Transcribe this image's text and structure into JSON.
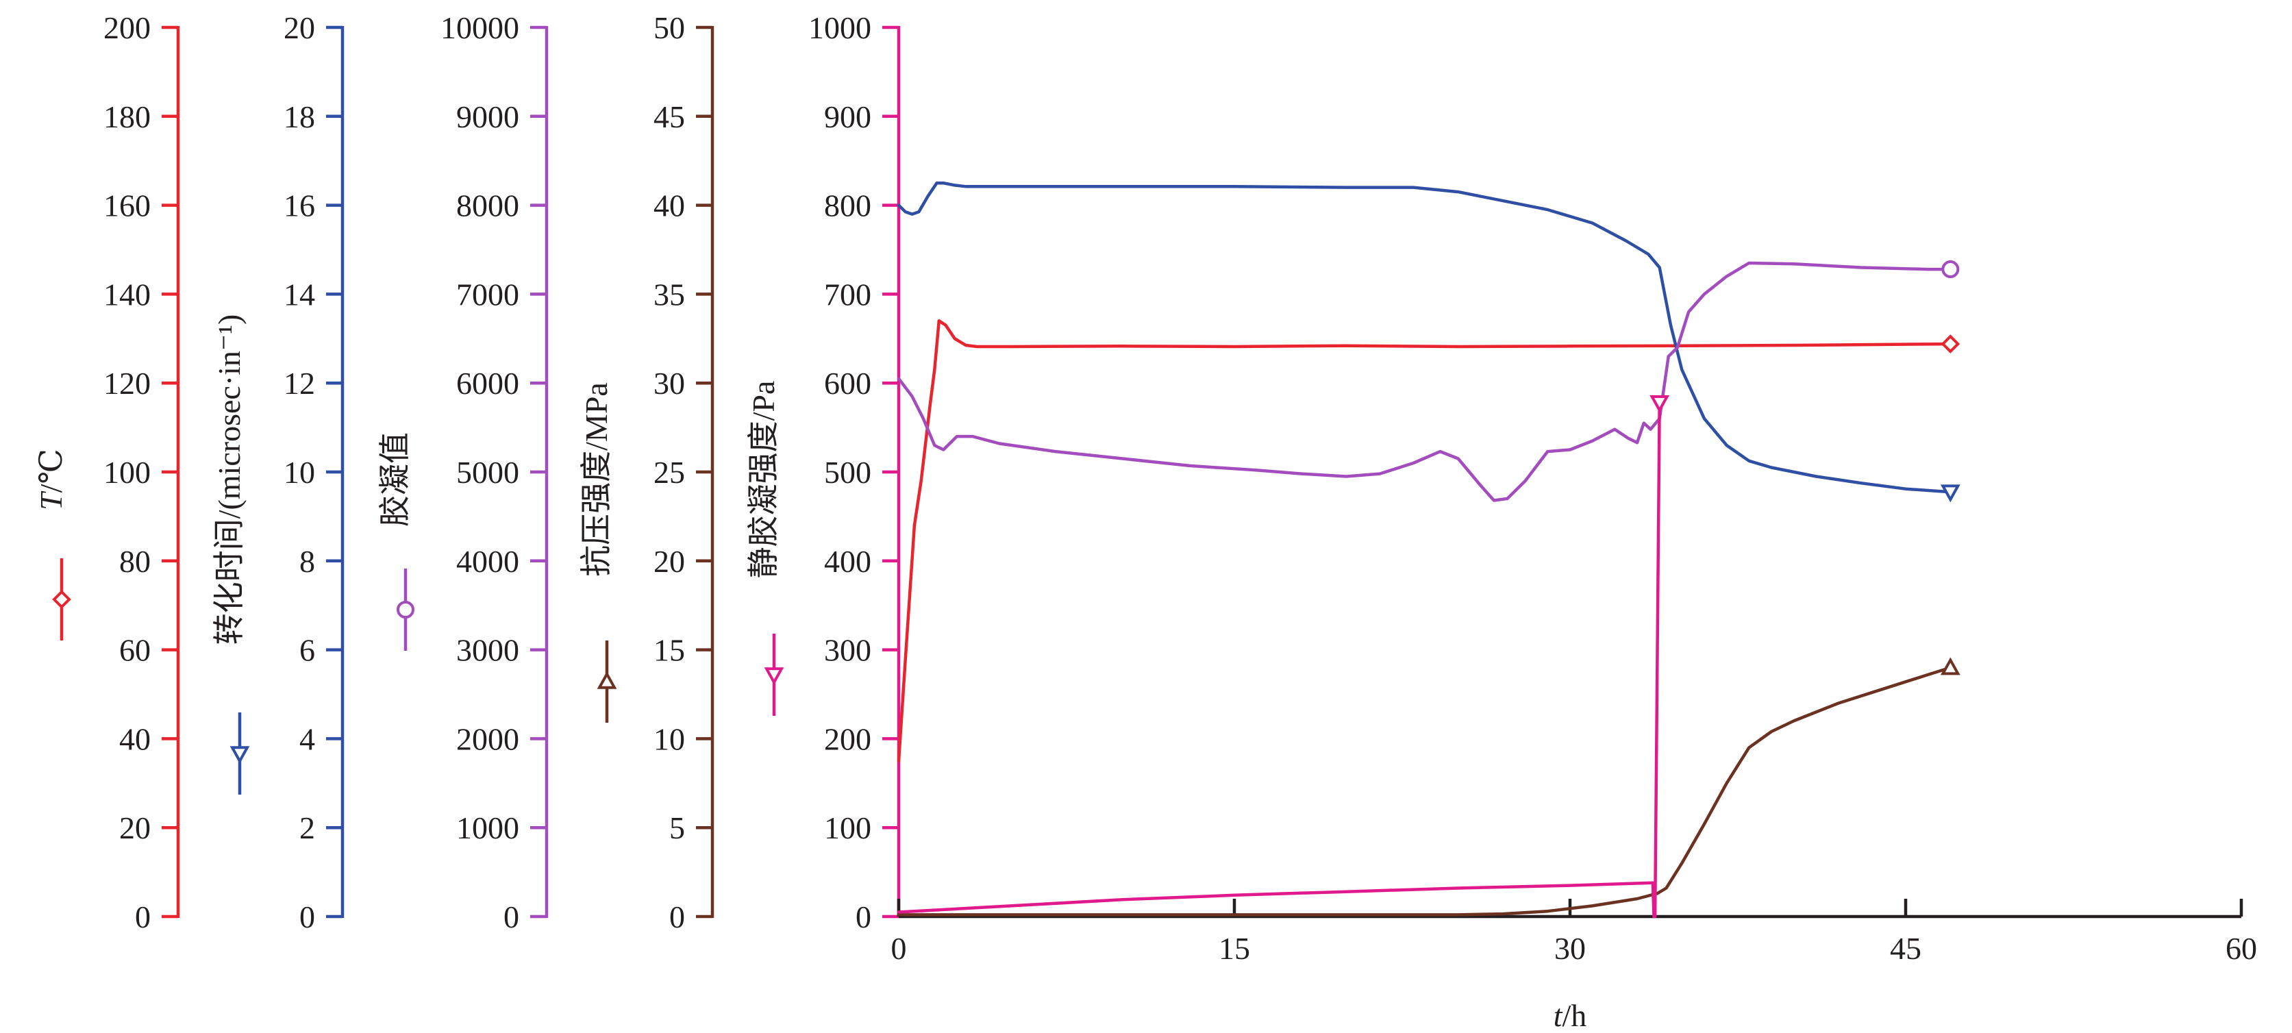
{
  "chart_data": {
    "type": "line",
    "x_axis": {
      "label": "t/h",
      "label_italic_part": "t",
      "label_rest": "/h",
      "range": [
        0,
        60
      ],
      "ticks": [
        0,
        15,
        30,
        45,
        60
      ],
      "tick_labels": [
        "0",
        "15",
        "30",
        "45",
        "60"
      ]
    },
    "y_axes": [
      {
        "id": "temperature",
        "title_italic": "T",
        "title_rest": "/℃",
        "color": "#e8242f",
        "range": [
          0,
          200
        ],
        "tick_labels": [
          "0",
          "20",
          "40",
          "60",
          "80",
          "100",
          "120",
          "140",
          "160",
          "180",
          "200"
        ],
        "marker": "diamond"
      },
      {
        "id": "transit_time",
        "title_italic": "",
        "title_rest": "转化时间/(microsec·in⁻¹)",
        "color": "#2e4fa3",
        "range": [
          0,
          20
        ],
        "tick_labels": [
          "0",
          "2",
          "4",
          "6",
          "8",
          "10",
          "12",
          "14",
          "16",
          "18",
          "20"
        ],
        "marker": "triangle-down"
      },
      {
        "id": "consistency",
        "title_italic": "",
        "title_rest": "胶凝值",
        "color": "#a34cbd",
        "range": [
          0,
          10000
        ],
        "tick_labels": [
          "0",
          "1000",
          "2000",
          "3000",
          "4000",
          "5000",
          "6000",
          "7000",
          "8000",
          "9000",
          "10000"
        ],
        "marker": "circle"
      },
      {
        "id": "compressive_strength",
        "title_italic": "",
        "title_rest": "抗压强度/MPa",
        "color": "#6b3222",
        "range": [
          0,
          50
        ],
        "tick_labels": [
          "0",
          "5",
          "10",
          "15",
          "20",
          "25",
          "30",
          "35",
          "40",
          "45",
          "50"
        ],
        "marker": "triangle-up"
      },
      {
        "id": "sgs",
        "title_italic": "",
        "title_rest": "静胶凝强度/Pa",
        "color": "#e0198c",
        "range": [
          0,
          1000
        ],
        "tick_labels": [
          "0",
          "100",
          "200",
          "300",
          "400",
          "500",
          "600",
          "700",
          "800",
          "900",
          "1000"
        ],
        "marker": "triangle-down"
      }
    ],
    "series": [
      {
        "axis": "temperature",
        "color": "#e8242f",
        "marker": "diamond",
        "x": [
          0,
          0.3,
          0.7,
          1.0,
          1.4,
          1.6,
          1.8,
          2.1,
          2.5,
          3.0,
          3.5,
          5,
          10,
          15,
          20,
          25,
          30,
          35,
          40,
          47
        ],
        "y": [
          35,
          58,
          88,
          98,
          115,
          123,
          134,
          133,
          130,
          128.5,
          128.2,
          128.2,
          128.3,
          128.2,
          128.4,
          128.2,
          128.3,
          128.4,
          128.5,
          128.8
        ]
      },
      {
        "axis": "transit_time",
        "color": "#2e4fa3",
        "marker": "triangle-down",
        "x": [
          0,
          0.3,
          0.6,
          0.9,
          1.3,
          1.7,
          2.0,
          2.5,
          3.0,
          5,
          10,
          15,
          20,
          23,
          25,
          27,
          29,
          31,
          32.5,
          33.5,
          34.0,
          34.5,
          35,
          36,
          37,
          38,
          39,
          41,
          43,
          45,
          47
        ],
        "y": [
          16.0,
          15.85,
          15.8,
          15.85,
          16.2,
          16.5,
          16.5,
          16.45,
          16.42,
          16.42,
          16.42,
          16.42,
          16.4,
          16.4,
          16.3,
          16.1,
          15.9,
          15.6,
          15.2,
          14.9,
          14.6,
          13.3,
          12.3,
          11.2,
          10.6,
          10.25,
          10.1,
          9.9,
          9.75,
          9.62,
          9.55
        ]
      },
      {
        "axis": "consistency",
        "color": "#a34cbd",
        "marker": "circle",
        "x": [
          0,
          0.6,
          1.1,
          1.6,
          2.0,
          2.6,
          3.3,
          4.5,
          7,
          10,
          13,
          16,
          18,
          20,
          21.5,
          23,
          24.2,
          25,
          26,
          26.6,
          27.2,
          28,
          29,
          30,
          31,
          32,
          32.6,
          33.0,
          33.3,
          33.6,
          34.0,
          34.4,
          34.8,
          35.3,
          36,
          37,
          38,
          40,
          43,
          46,
          47
        ],
        "y": [
          6050,
          5850,
          5600,
          5300,
          5250,
          5400,
          5400,
          5320,
          5230,
          5150,
          5070,
          5020,
          4980,
          4950,
          4980,
          5100,
          5230,
          5150,
          4850,
          4680,
          4700,
          4900,
          5230,
          5250,
          5350,
          5480,
          5380,
          5330,
          5550,
          5480,
          5600,
          6300,
          6400,
          6800,
          7000,
          7200,
          7350,
          7340,
          7300,
          7280,
          7280
        ]
      },
      {
        "axis": "compressive_strength",
        "color": "#6b3222",
        "marker": "triangle-up",
        "x": [
          0,
          10,
          20,
          25,
          27,
          29,
          31,
          33,
          33.9,
          34.3,
          35,
          36,
          37,
          38,
          39,
          40,
          42,
          44,
          46,
          47
        ],
        "y": [
          0.1,
          0.1,
          0.1,
          0.1,
          0.15,
          0.3,
          0.6,
          1.0,
          1.3,
          1.6,
          3.0,
          5.2,
          7.5,
          9.5,
          10.4,
          11.0,
          12.0,
          12.8,
          13.6,
          14.0
        ]
      },
      {
        "axis": "sgs",
        "color": "#e0198c",
        "marker": "triangle-down",
        "x": [
          0,
          5,
          10,
          15,
          20,
          25,
          30,
          33.7,
          33.75,
          33.8,
          34.0
        ],
        "y": [
          5,
          12,
          19,
          24,
          28,
          32,
          35,
          38,
          0,
          0,
          578
        ]
      }
    ],
    "grid": false,
    "legend": "none"
  }
}
